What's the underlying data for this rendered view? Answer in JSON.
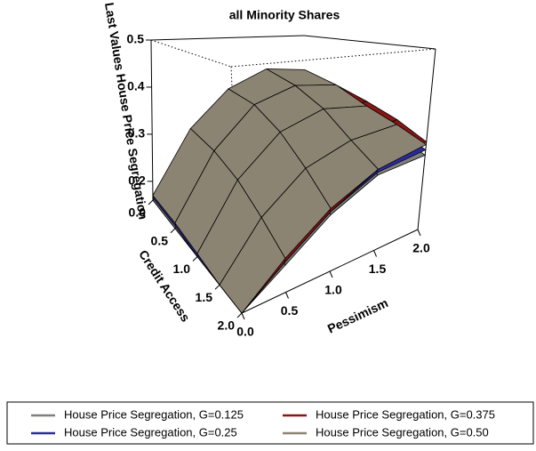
{
  "chart_data": {
    "type": "surface3d",
    "title": "all Minority Shares",
    "xlabel": "Pessimism",
    "ylabel": "Credit Access",
    "zlabel": "Last Values House Price Segregation",
    "x": [
      0,
      0.5,
      1,
      1.5,
      2
    ],
    "y": [
      0,
      0.5,
      1,
      1.5,
      2
    ],
    "xlim": [
      0,
      2
    ],
    "ylim": [
      0,
      2
    ],
    "zlim": [
      0.16,
      0.5
    ],
    "xticks": [
      {
        "value": 0,
        "label": "0.0"
      },
      0.5,
      {
        "value": 1,
        "label": "1.0"
      },
      1.5,
      {
        "value": 2,
        "label": "2.0"
      }
    ],
    "yticks": [
      {
        "value": 0,
        "label": "0.0"
      },
      0.5,
      {
        "value": 1,
        "label": "1.0"
      },
      1.5,
      {
        "value": 2,
        "label": "2.0"
      }
    ],
    "zticks": [
      0.2,
      0.3,
      0.4,
      0.5
    ],
    "series": [
      {
        "name": "House Price Segregation, G=0.125",
        "color": "#7f7f7f",
        "values": [
          [
            0.16,
            0.28,
            0.36,
            0.39,
            0.38
          ],
          [
            0.16,
            0.27,
            0.35,
            0.38,
            0.37
          ],
          [
            0.16,
            0.26,
            0.32,
            0.35,
            0.34
          ],
          [
            0.16,
            0.23,
            0.29,
            0.31,
            0.32
          ],
          [
            0.16,
            0.2,
            0.25,
            0.29,
            0.3
          ]
        ]
      },
      {
        "name": "House Price Segregation, G=0.25",
        "color": "#2b2b9c",
        "values": [
          [
            0.165,
            0.29,
            0.37,
            0.4,
            0.39
          ],
          [
            0.165,
            0.28,
            0.36,
            0.39,
            0.38
          ],
          [
            0.16,
            0.265,
            0.33,
            0.36,
            0.35
          ],
          [
            0.16,
            0.235,
            0.295,
            0.32,
            0.33
          ],
          [
            0.16,
            0.205,
            0.255,
            0.295,
            0.31
          ]
        ]
      },
      {
        "name": "House Price Segregation, G=0.375",
        "color": "#8b1414",
        "values": [
          [
            0.17,
            0.295,
            0.375,
            0.415,
            0.405
          ],
          [
            0.17,
            0.285,
            0.365,
            0.395,
            0.39
          ],
          [
            0.165,
            0.265,
            0.335,
            0.365,
            0.37
          ],
          [
            0.16,
            0.235,
            0.295,
            0.33,
            0.35
          ],
          [
            0.16,
            0.205,
            0.255,
            0.3,
            0.325
          ]
        ]
      },
      {
        "name": "House Price Segregation, G=0.50",
        "color": "#8c8472",
        "values": [
          [
            0.17,
            0.3,
            0.38,
            0.42,
            0.41
          ],
          [
            0.17,
            0.29,
            0.37,
            0.4,
            0.39
          ],
          [
            0.165,
            0.27,
            0.34,
            0.37,
            0.36
          ],
          [
            0.16,
            0.24,
            0.3,
            0.33,
            0.34
          ],
          [
            0.16,
            0.21,
            0.26,
            0.3,
            0.32
          ]
        ]
      }
    ]
  }
}
